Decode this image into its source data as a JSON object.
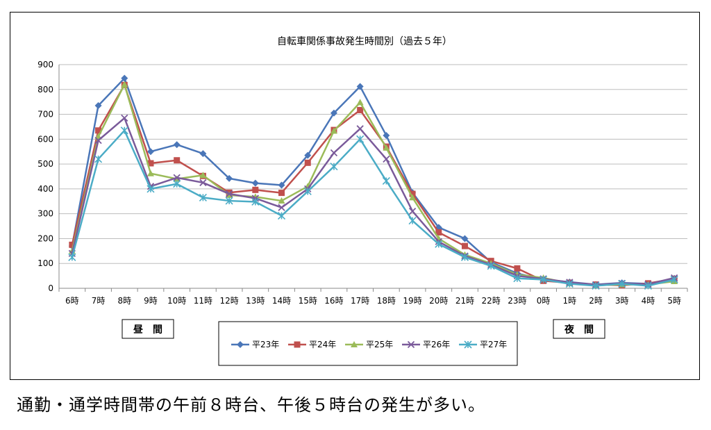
{
  "chart_data": {
    "type": "line",
    "title": "自転車関係事故発生時間別（過去５年）",
    "xlabel": "",
    "ylabel": "",
    "categories": [
      "6時",
      "7時",
      "8時",
      "9時",
      "10時",
      "11時",
      "12時",
      "13時",
      "14時",
      "15時",
      "16時",
      "17時",
      "18時",
      "19時",
      "20時",
      "21時",
      "22時",
      "23時",
      "0時",
      "1時",
      "2時",
      "3時",
      "4時",
      "5時"
    ],
    "ylim": [
      0,
      900
    ],
    "yticks": [
      0,
      100,
      200,
      300,
      400,
      500,
      600,
      700,
      800,
      900
    ],
    "grid": "horizontal",
    "legend_position": "bottom-center",
    "series": [
      {
        "name": "平23年",
        "color": "#4a76b8",
        "marker": "diamond",
        "values": [
          170,
          735,
          845,
          550,
          578,
          542,
          442,
          423,
          415,
          535,
          705,
          812,
          615,
          385,
          245,
          200,
          105,
          60,
          35,
          25,
          15,
          22,
          18,
          40
        ]
      },
      {
        "name": "平24年",
        "color": "#c0504d",
        "marker": "square",
        "values": [
          175,
          635,
          818,
          503,
          515,
          452,
          385,
          396,
          384,
          505,
          637,
          717,
          570,
          380,
          225,
          170,
          110,
          80,
          30,
          22,
          15,
          12,
          20,
          38
        ]
      },
      {
        "name": "平25年",
        "color": "#9bbb59",
        "marker": "triangle",
        "values": [
          150,
          610,
          820,
          462,
          440,
          455,
          375,
          368,
          352,
          410,
          633,
          748,
          565,
          365,
          200,
          135,
          100,
          55,
          42,
          20,
          12,
          15,
          15,
          28
        ]
      },
      {
        "name": "平26年",
        "color": "#7a5a9a",
        "marker": "x",
        "values": [
          140,
          595,
          685,
          410,
          445,
          425,
          380,
          362,
          325,
          400,
          545,
          642,
          520,
          310,
          188,
          130,
          95,
          50,
          38,
          24,
          14,
          20,
          16,
          42
        ]
      },
      {
        "name": "平27年",
        "color": "#4bacc6",
        "marker": "star",
        "values": [
          125,
          520,
          635,
          400,
          420,
          365,
          352,
          348,
          292,
          390,
          490,
          600,
          432,
          272,
          178,
          125,
          90,
          40,
          35,
          18,
          10,
          18,
          10,
          35
        ]
      }
    ],
    "annotations": [
      "昼　間",
      "夜　間"
    ]
  },
  "caption": "通勤・通学時間帯の午前８時台、午後５時台の発生が多い。"
}
